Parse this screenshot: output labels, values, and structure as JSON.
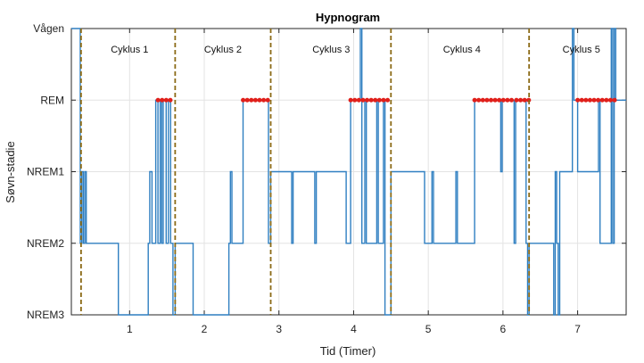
{
  "chart_data": {
    "type": "line",
    "title": "Hypnogram",
    "xlabel": "Tid (Timer)",
    "ylabel": "Søvn-stadie",
    "xlim": [
      0.22,
      7.65
    ],
    "x_ticks": [
      1,
      2,
      3,
      4,
      5,
      6,
      7
    ],
    "y_categories": [
      "NREM3",
      "NREM2",
      "NREM1",
      "REM",
      "Vågen"
    ],
    "grid": true,
    "line_color": "#2f7fc1",
    "rem_color": "#e0201b",
    "boundary_color": "#8b6a16",
    "cycle_boundaries": [
      0.35,
      1.61,
      2.89,
      4.5,
      6.35
    ],
    "cycles": [
      {
        "label": "Cyklus 1",
        "x": 1.0
      },
      {
        "label": "Cyklus 2",
        "x": 2.25
      },
      {
        "label": "Cyklus 3",
        "x": 3.7
      },
      {
        "label": "Cyklus 4",
        "x": 5.45
      },
      {
        "label": "Cyklus 5",
        "x": 7.05
      }
    ],
    "rem_segments": [
      [
        1.38,
        1.58
      ],
      [
        2.52,
        2.89
      ],
      [
        3.96,
        4.5
      ],
      [
        5.62,
        6.15
      ],
      [
        6.18,
        6.35
      ],
      [
        7.0,
        7.52
      ]
    ],
    "series": {
      "x": [
        0.22,
        0.34,
        0.34,
        0.36,
        0.36,
        0.38,
        0.38,
        0.4,
        0.4,
        0.42,
        0.42,
        0.85,
        0.85,
        1.25,
        1.25,
        1.27,
        1.27,
        1.3,
        1.3,
        1.35,
        1.35,
        1.38,
        1.38,
        1.41,
        1.41,
        1.43,
        1.43,
        1.45,
        1.45,
        1.49,
        1.49,
        1.52,
        1.52,
        1.55,
        1.55,
        1.58,
        1.58,
        1.61,
        1.61,
        1.85,
        1.85,
        2.33,
        2.33,
        2.35,
        2.35,
        2.37,
        2.37,
        2.52,
        2.52,
        2.86,
        2.86,
        2.89,
        2.89,
        3.17,
        3.17,
        3.19,
        3.19,
        3.48,
        3.48,
        3.5,
        3.5,
        3.9,
        3.9,
        3.96,
        3.96,
        4.09,
        4.09,
        4.11,
        4.11,
        4.15,
        4.15,
        4.17,
        4.17,
        4.31,
        4.31,
        4.33,
        4.33,
        4.4,
        4.4,
        4.42,
        4.42,
        4.5,
        4.5,
        4.95,
        4.95,
        5.05,
        5.05,
        5.07,
        5.07,
        5.37,
        5.37,
        5.39,
        5.39,
        5.62,
        5.62,
        5.97,
        5.97,
        5.99,
        5.99,
        6.15,
        6.15,
        6.17,
        6.17,
        6.31,
        6.31,
        6.33,
        6.33,
        6.35,
        6.35,
        6.68,
        6.68,
        6.7,
        6.7,
        6.72,
        6.72,
        6.74,
        6.74,
        6.76,
        6.76,
        6.93,
        6.93,
        6.95,
        6.95,
        7.0,
        7.0,
        7.28,
        7.28,
        7.3,
        7.3,
        7.45,
        7.45,
        7.47,
        7.47,
        7.49,
        7.49,
        7.51,
        7.51,
        7.65
      ],
      "y": [
        4,
        4,
        1,
        1,
        2,
        2,
        1,
        1,
        2,
        2,
        1,
        1,
        0,
        0,
        1,
        1,
        2,
        2,
        1,
        1,
        3,
        3,
        1,
        1,
        3,
        3,
        1,
        1,
        3,
        3,
        1,
        1,
        3,
        3,
        1,
        1,
        0,
        0,
        1,
        1,
        0,
        0,
        1,
        1,
        2,
        2,
        1,
        1,
        3,
        3,
        1,
        1,
        2,
        2,
        1,
        1,
        2,
        2,
        1,
        1,
        2,
        2,
        1,
        1,
        3,
        3,
        4,
        4,
        1,
        1,
        3,
        3,
        1,
        1,
        3,
        3,
        1,
        1,
        3,
        3,
        0,
        0,
        2,
        2,
        1,
        1,
        2,
        2,
        1,
        1,
        2,
        2,
        1,
        1,
        3,
        3,
        2,
        2,
        3,
        3,
        1,
        1,
        3,
        3,
        1,
        1,
        0,
        0,
        1,
        1,
        0,
        0,
        2,
        2,
        1,
        1,
        0,
        0,
        2,
        2,
        4,
        4,
        3,
        3,
        2,
        2,
        3,
        3,
        1,
        1,
        4,
        4,
        1,
        1,
        4,
        4,
        3,
        3
      ]
    }
  }
}
